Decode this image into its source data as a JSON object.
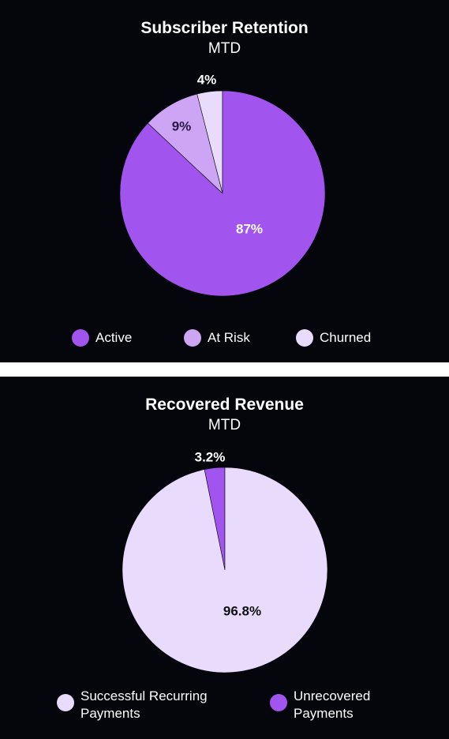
{
  "chart_data": [
    {
      "type": "pie",
      "title": "Subscriber Retention",
      "subtitle": "MTD",
      "slices": [
        {
          "label": "Active",
          "value": 87,
          "display": "87%",
          "color": "#a155ee"
        },
        {
          "label": "At Risk",
          "value": 9,
          "display": "9%",
          "color": "#cca6f4"
        },
        {
          "label": "Churned",
          "value": 4,
          "display": "4%",
          "color": "#e9dbfb"
        }
      ],
      "legend": {
        "placement": "bottom"
      }
    },
    {
      "type": "pie",
      "title": "Recovered Revenue",
      "subtitle": "MTD",
      "slices": [
        {
          "label": "Successful Recurring Payments",
          "value": 96.8,
          "display": "96.8%",
          "color": "#e9dbfb"
        },
        {
          "label": "Unrecovered Payments",
          "value": 3.2,
          "display": "3.2%",
          "color": "#a155ee"
        }
      ],
      "legend": {
        "placement": "bottom"
      }
    }
  ]
}
